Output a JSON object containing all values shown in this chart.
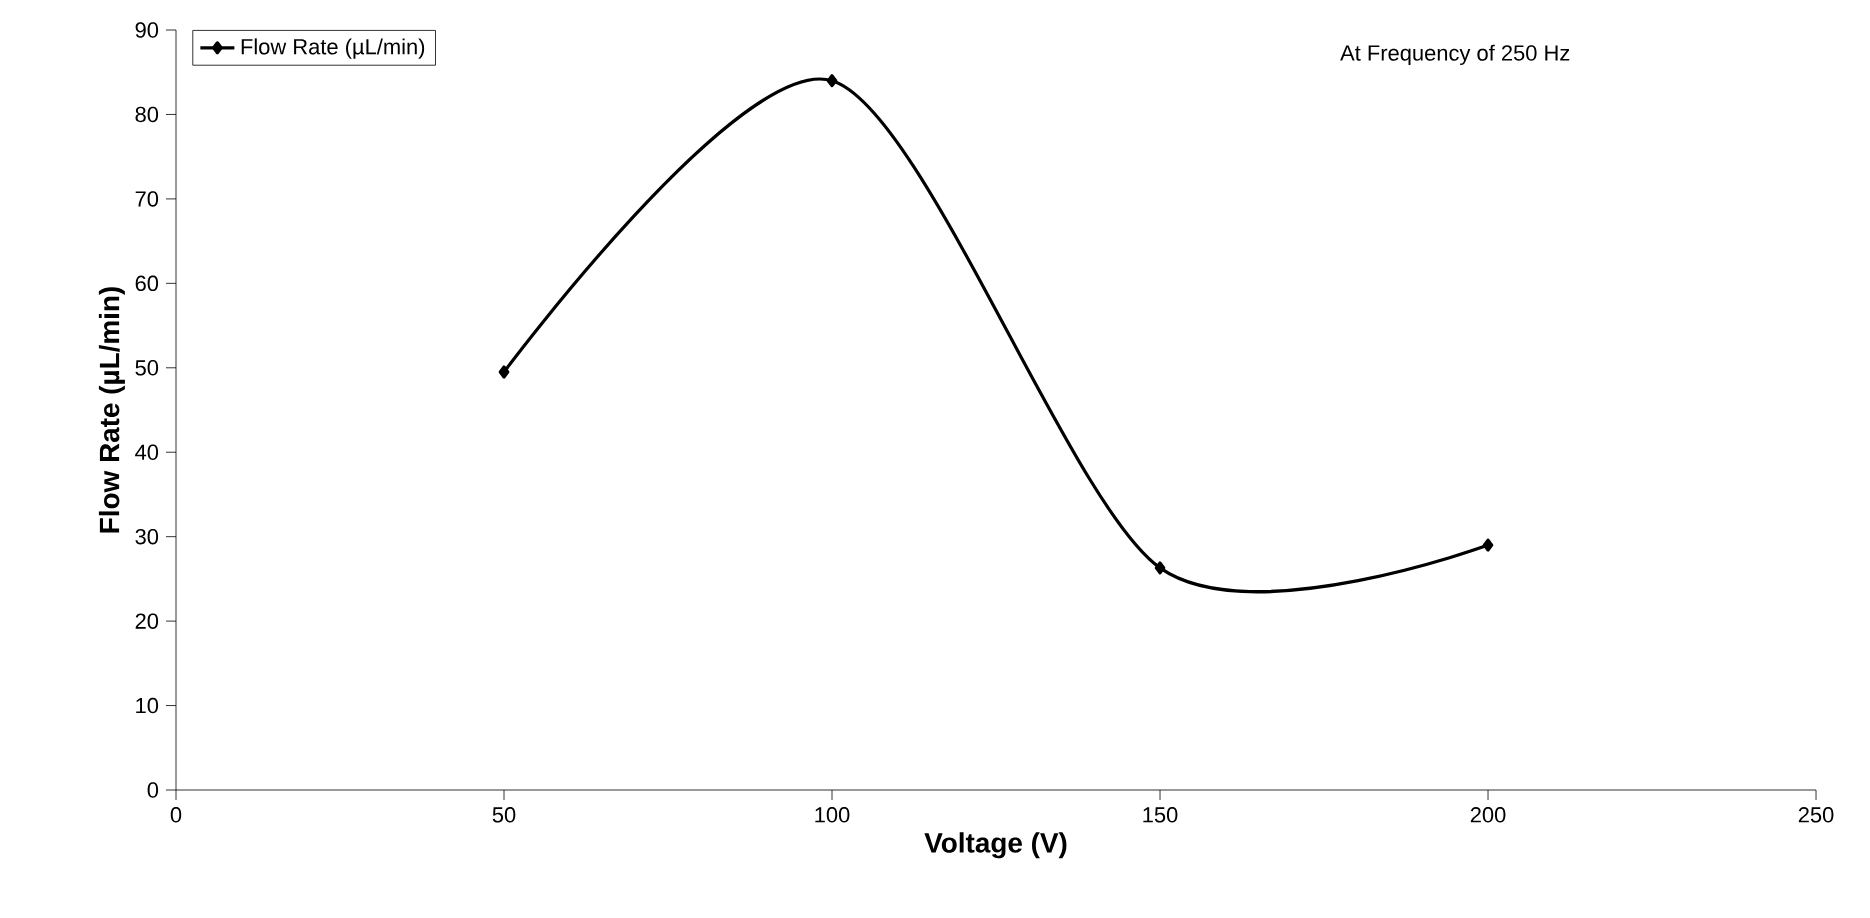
{
  "chart_data": {
    "type": "line",
    "xlabel": "Voltage (V)",
    "ylabel": "Flow Rate (µL/min)",
    "annotations": [
      "At Frequency of 250 Hz"
    ],
    "x": [
      50,
      100,
      150,
      200
    ],
    "series": [
      {
        "name": "Flow Rate (µL/min)",
        "color": "#000000",
        "values": [
          49.5,
          84,
          26.3,
          29
        ]
      }
    ],
    "xlim": [
      0,
      250
    ],
    "xticks": [
      0,
      50,
      100,
      150,
      200,
      250
    ],
    "ylim": [
      0,
      90
    ],
    "yticks": [
      0,
      10,
      20,
      30,
      40,
      50,
      60,
      70,
      80,
      90
    ],
    "grid": false,
    "legend": "top left",
    "marker": "diamond",
    "line_style": "solid"
  }
}
